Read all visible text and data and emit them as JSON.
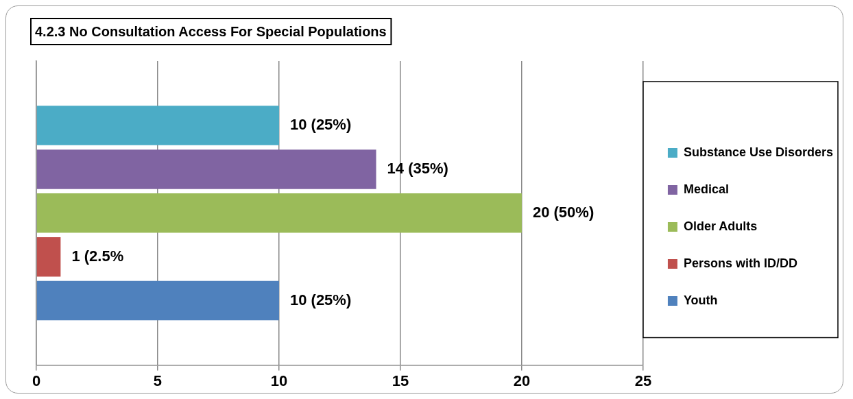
{
  "chart_data": {
    "type": "bar",
    "orientation": "horizontal",
    "title": "4.2.3 No Consultation Access For Special Populations",
    "categories": [
      null
    ],
    "series": [
      {
        "name": "Substance Use Disorders",
        "color": "#4bacc6",
        "values": [
          10
        ],
        "value_labels": [
          "10 (25%)"
        ]
      },
      {
        "name": "Medical",
        "color": "#8064a2",
        "values": [
          14
        ],
        "value_labels": [
          "14 (35%)"
        ]
      },
      {
        "name": "Older Adults",
        "color": "#9bbb59",
        "values": [
          20
        ],
        "value_labels": [
          "20 (50%)"
        ]
      },
      {
        "name": "Persons with ID/DD",
        "color": "#c0504d",
        "values": [
          1
        ],
        "value_labels": [
          "1 (2.5%"
        ]
      },
      {
        "name": "Youth",
        "color": "#4f81bd",
        "values": [
          10
        ],
        "value_labels": [
          "10 (25%)"
        ]
      }
    ],
    "xlim": [
      0,
      25
    ],
    "xticks": [
      0,
      5,
      10,
      15,
      20,
      25
    ],
    "grid": "x",
    "legend": "right"
  }
}
